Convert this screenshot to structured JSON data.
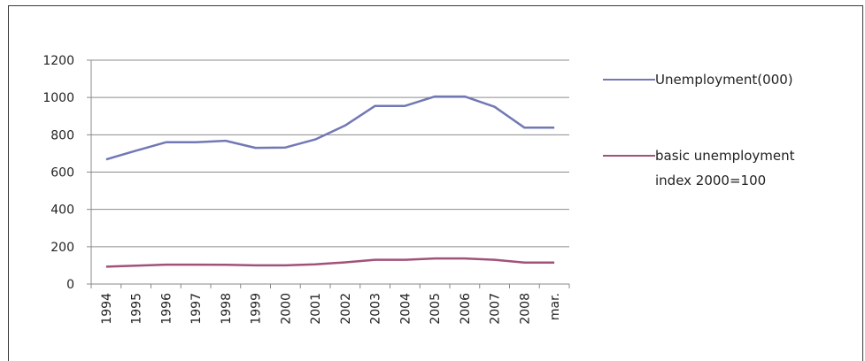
{
  "chart_data": {
    "type": "line",
    "categories": [
      "1994",
      "1995",
      "1996",
      "1997",
      "1998",
      "1999",
      "2000",
      "2001",
      "2002",
      "2003",
      "2004",
      "2005",
      "2006",
      "2007",
      "2008",
      "mar."
    ],
    "ylim": [
      0,
      1200
    ],
    "yticks": [
      0,
      200,
      400,
      600,
      800,
      1000,
      1200
    ],
    "grid": true,
    "legend_position": "right",
    "series": [
      {
        "name": "Unemployment(000)",
        "color": "#7278b4",
        "values": [
          668,
          715,
          760,
          760,
          768,
          730,
          732,
          775,
          850,
          955,
          955,
          1005,
          1005,
          950,
          838,
          838
        ]
      },
      {
        "name": "basic unemployment index 2000=100",
        "color": "#a05278",
        "values": [
          93,
          98,
          104,
          104,
          103,
          100,
          100,
          106,
          116,
          130,
          130,
          137,
          137,
          130,
          115,
          115
        ]
      }
    ]
  }
}
